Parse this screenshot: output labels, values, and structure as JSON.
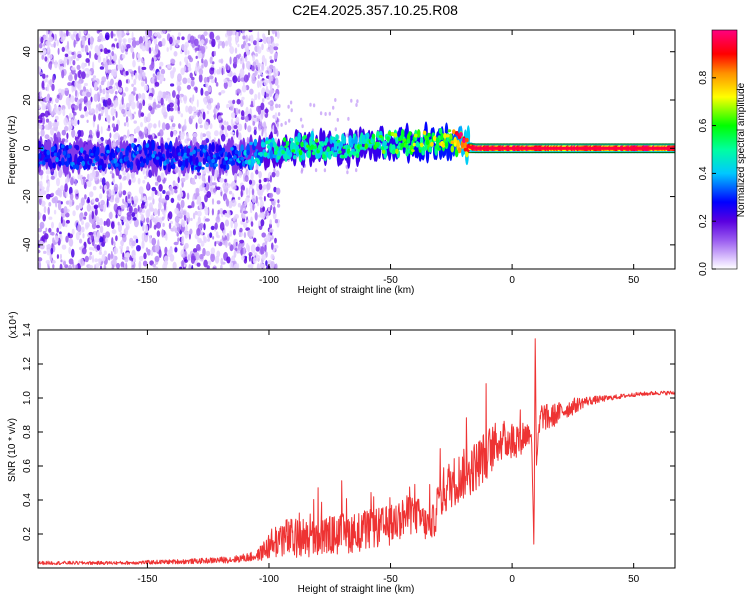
{
  "title": "C2E4.2025.357.10.25.R08",
  "colors": {
    "snr_line": "#ee3333",
    "background": "#ffffff",
    "axis": "#000000"
  },
  "chart_data": [
    {
      "type": "heatmap",
      "xlabel": "Height of straight line (km)",
      "ylabel": "Frequency (Hz)",
      "xlim": [
        -195,
        67
      ],
      "ylim": [
        -50,
        49
      ],
      "x_ticks": [
        -150,
        -100,
        -50,
        0,
        50
      ],
      "y_ticks": [
        -40,
        -20,
        0,
        20,
        40
      ],
      "colorbar": {
        "label": "Normalized spectral amplitude",
        "range": [
          0,
          1
        ],
        "ticks": [
          0.0,
          0.2,
          0.4,
          0.6,
          0.8
        ],
        "colormap": "rainbow (white/light purple → purple → blue → cyan → green → yellow → orange → red → magenta)"
      },
      "ridge": {
        "description": "Dominant spectral line, noisy at low heights, narrowing and steady near 0 Hz above about -20 km",
        "x": [
          -195,
          -170,
          -150,
          -130,
          -110,
          -100,
          -90,
          -80,
          -70,
          -60,
          -50,
          -40,
          -30,
          -25,
          -20,
          -15,
          0,
          25,
          67
        ],
        "frequency": [
          -3,
          -4,
          -3,
          -4,
          -3,
          -1,
          0,
          1,
          0,
          1,
          2,
          2,
          3,
          3,
          1,
          0,
          0,
          0,
          0
        ],
        "amplitude": [
          0.3,
          0.3,
          0.3,
          0.3,
          0.35,
          0.45,
          0.5,
          0.5,
          0.5,
          0.5,
          0.55,
          0.6,
          0.65,
          0.65,
          0.9,
          0.95,
          0.95,
          0.95,
          0.95
        ]
      },
      "noise_region": {
        "x_range": [
          -195,
          -100
        ],
        "frequency_range": [
          -50,
          49
        ]
      }
    },
    {
      "type": "line",
      "xlabel": "Height of straight line (km)",
      "ylabel": "SNR (10 * v/v)",
      "y_multiplier": "(x10⁴)",
      "xlim": [
        -195,
        67
      ],
      "ylim": [
        0,
        1.4
      ],
      "x_ticks": [
        -150,
        -100,
        -50,
        0,
        50
      ],
      "y_ticks": [
        0.2,
        0.4,
        0.6,
        0.8,
        1.0,
        1.2,
        1.4
      ],
      "series": [
        {
          "x": [
            -195,
            -160,
            -130,
            -115,
            -105,
            -98,
            -95,
            -90,
            -80,
            -70,
            -60,
            -50,
            -45,
            -40,
            -35,
            -32,
            -30,
            -25,
            -20,
            -15,
            -10,
            -5,
            0,
            5,
            8,
            9,
            9.5,
            10,
            11,
            12,
            15,
            20,
            25,
            30,
            40,
            50,
            60,
            67
          ],
          "y": [
            0.03,
            0.03,
            0.04,
            0.05,
            0.07,
            0.15,
            0.18,
            0.17,
            0.18,
            0.2,
            0.22,
            0.25,
            0.3,
            0.32,
            0.25,
            0.28,
            0.42,
            0.5,
            0.55,
            0.6,
            0.68,
            0.75,
            0.75,
            0.78,
            0.8,
            0.1,
            1.4,
            0.6,
            0.8,
            0.9,
            0.88,
            0.92,
            0.95,
            0.98,
            1.0,
            1.02,
            1.03,
            1.03
          ],
          "noise_amplitude": [
            0.01,
            0.01,
            0.015,
            0.02,
            0.03,
            0.1,
            0.12,
            0.12,
            0.12,
            0.12,
            0.12,
            0.12,
            0.12,
            0.12,
            0.1,
            0.1,
            0.15,
            0.15,
            0.15,
            0.15,
            0.15,
            0.12,
            0.12,
            0.1,
            0.05,
            0,
            0,
            0,
            0.08,
            0.08,
            0.08,
            0.06,
            0.05,
            0.03,
            0.015,
            0.012,
            0.012,
            0.012
          ]
        }
      ]
    }
  ]
}
